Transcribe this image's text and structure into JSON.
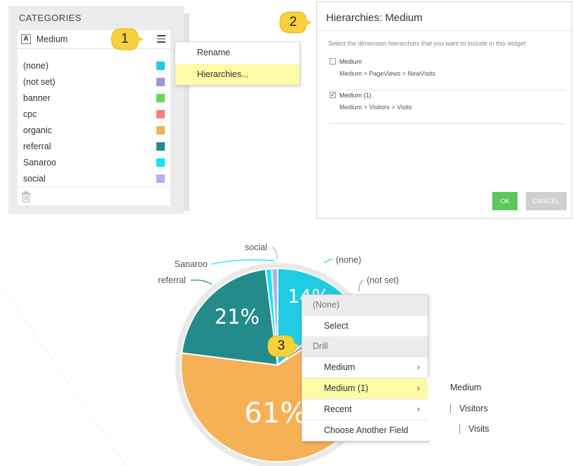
{
  "categories_panel": {
    "title": "CATEGORIES",
    "field": {
      "type_badge": "A",
      "name": "Medium"
    },
    "items": [
      {
        "label": "(none)",
        "color": "#1ecce3"
      },
      {
        "label": "(not set)",
        "color": "#9e99d6"
      },
      {
        "label": "banner",
        "color": "#6bd657"
      },
      {
        "label": "cpc",
        "color": "#f67e7b"
      },
      {
        "label": "organic",
        "color": "#f6b156"
      },
      {
        "label": "referral",
        "color": "#248b8d"
      },
      {
        "label": "Sanaroo",
        "color": "#17e3f4"
      },
      {
        "label": "social",
        "color": "#aeb1ef"
      }
    ],
    "icons": {
      "menu": "hamburger-icon",
      "delete": "trash-icon"
    }
  },
  "field_menu": {
    "items": [
      {
        "label": "Rename"
      },
      {
        "label": "Hierarchies..."
      }
    ]
  },
  "callouts": [
    "1",
    "2",
    "3"
  ],
  "dialog": {
    "title": "Hierarchies: Medium",
    "instruction": "Select the dimension hierarchies that you want to include in this widget",
    "options": [
      {
        "name": "Medium",
        "path": "Medium > PageViews > NewVisits",
        "checked": false
      },
      {
        "name": "Medium (1)",
        "path": "Medium > Visitors > Visits",
        "checked": true
      }
    ],
    "ok_label": "OK",
    "cancel_label": "CANCEL"
  },
  "chart_data": {
    "type": "pie",
    "slices": [
      {
        "label": "(none)",
        "pct": 14,
        "pct_text": "14%",
        "color": "#1ecce3"
      },
      {
        "label": "(not set)",
        "pct": 2,
        "color": "#9e99d6"
      },
      {
        "label": "organic",
        "pct": 61,
        "pct_text": "61%",
        "color": "#f6b156"
      },
      {
        "label": "referral",
        "pct": 21,
        "pct_text": "21%",
        "color": "#248b8d"
      },
      {
        "label": "Sanaroo",
        "pct": 1,
        "color": "#17e3f4"
      },
      {
        "label": "social",
        "pct": 1,
        "color": "#aeb1ef"
      }
    ]
  },
  "chart_menu": {
    "header": "(None)",
    "select_label": "Select",
    "drill_header": "Drill",
    "items": [
      {
        "label": "Medium",
        "has_submenu": true
      },
      {
        "label": "Medium (1)",
        "has_submenu": true,
        "highlighted": true
      },
      {
        "label": "Recent",
        "has_submenu": true
      },
      {
        "label": "Choose Another Field",
        "has_submenu": false
      }
    ],
    "submenu": [
      "Medium",
      "Visitors",
      "Visits"
    ]
  }
}
